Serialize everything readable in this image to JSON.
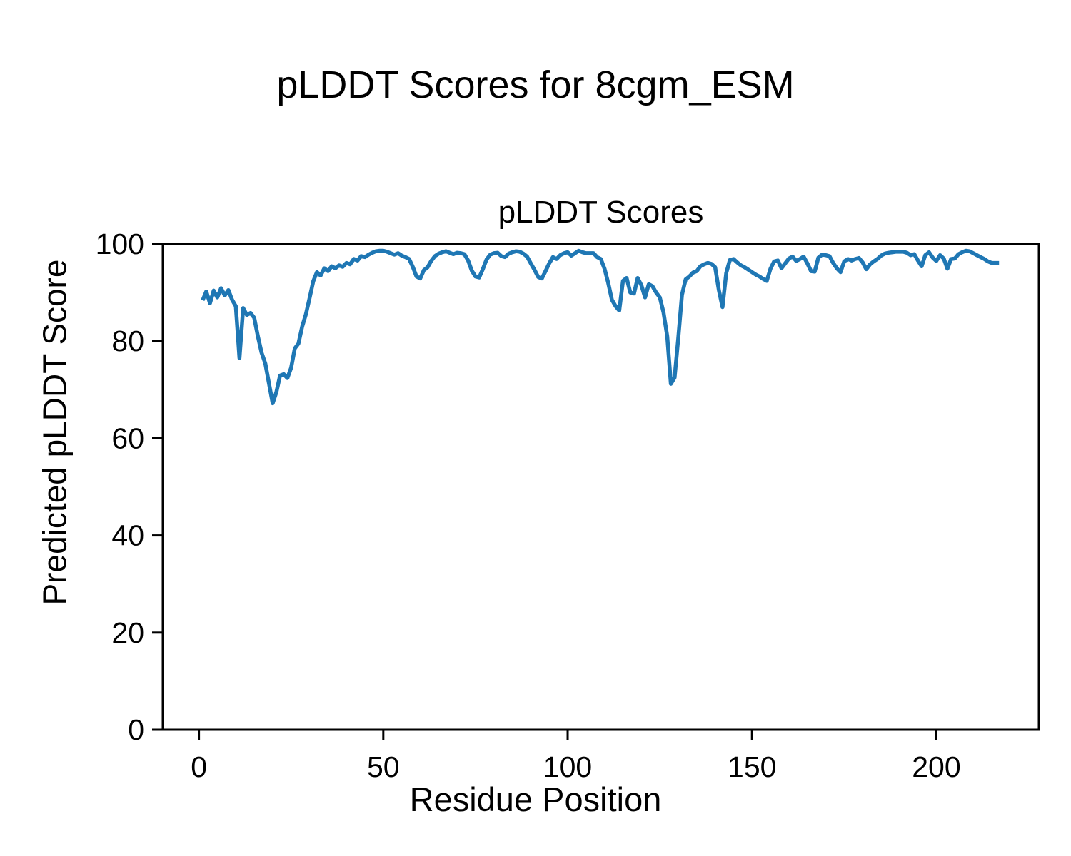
{
  "figure": {
    "suptitle": "pLDDT Scores for 8cgm_ESM"
  },
  "chart_data": {
    "type": "line",
    "title": "pLDDT Scores",
    "xlabel": "Residue Position",
    "ylabel": "Predicted pLDDT Score",
    "x_ticks": [
      0,
      50,
      100,
      150,
      200
    ],
    "y_ticks": [
      0,
      20,
      40,
      60,
      80,
      100
    ],
    "xlim": [
      -9.8,
      227.8
    ],
    "ylim": [
      0,
      100
    ],
    "legend": "none",
    "grid": false,
    "line_color": "#1f77b4",
    "axis_color": "#000000",
    "x_start": 1,
    "values": [
      88.4,
      90.2,
      87.8,
      90.4,
      89.0,
      90.9,
      89.4,
      90.5,
      88.5,
      87.2,
      76.5,
      86.8,
      85.4,
      85.8,
      84.8,
      81.0,
      77.6,
      75.4,
      71.3,
      67.2,
      69.5,
      72.9,
      73.2,
      72.4,
      74.5,
      78.5,
      79.5,
      83.0,
      85.5,
      88.8,
      92.3,
      94.2,
      93.5,
      95.0,
      94.4,
      95.4,
      95.0,
      95.6,
      95.3,
      96.1,
      95.8,
      96.9,
      96.6,
      97.5,
      97.3,
      97.8,
      98.2,
      98.5,
      98.6,
      98.6,
      98.4,
      98.1,
      97.8,
      98.1,
      97.6,
      97.3,
      96.9,
      95.3,
      93.3,
      92.9,
      94.6,
      95.2,
      96.5,
      97.5,
      98.0,
      98.3,
      98.5,
      98.2,
      97.9,
      98.2,
      98.1,
      97.9,
      96.6,
      94.5,
      93.3,
      93.1,
      94.8,
      96.8,
      97.8,
      98.1,
      98.2,
      97.5,
      97.3,
      98.0,
      98.3,
      98.5,
      98.4,
      98.0,
      97.4,
      96.0,
      94.7,
      93.2,
      92.9,
      94.4,
      96.0,
      97.3,
      96.9,
      97.7,
      98.1,
      98.3,
      97.6,
      98.1,
      98.6,
      98.3,
      98.1,
      98.1,
      98.1,
      97.3,
      96.9,
      94.9,
      92.0,
      88.5,
      87.2,
      86.3,
      92.4,
      93.0,
      90.0,
      89.8,
      93.0,
      91.5,
      89.0,
      91.7,
      91.3,
      90.0,
      89.0,
      85.9,
      81.0,
      71.2,
      72.5,
      80.5,
      89.5,
      92.7,
      93.3,
      94.1,
      94.4,
      95.4,
      95.8,
      96.1,
      95.9,
      95.2,
      90.5,
      87.0,
      94.0,
      96.7,
      96.9,
      96.2,
      95.6,
      95.2,
      94.7,
      94.2,
      93.7,
      93.3,
      92.8,
      92.4,
      94.9,
      96.4,
      96.6,
      95.0,
      96.0,
      97.0,
      97.4,
      96.5,
      96.9,
      97.4,
      96.0,
      94.4,
      94.3,
      97.2,
      97.8,
      97.7,
      97.5,
      96.1,
      95.0,
      94.2,
      96.4,
      96.9,
      96.6,
      96.9,
      97.1,
      96.2,
      94.8,
      95.8,
      96.4,
      96.9,
      97.6,
      98.0,
      98.2,
      98.3,
      98.4,
      98.4,
      98.4,
      98.2,
      97.7,
      97.9,
      96.6,
      95.4,
      97.7,
      98.3,
      97.2,
      96.5,
      97.7,
      97.0,
      94.9,
      96.9,
      97.0,
      97.9,
      98.3,
      98.6,
      98.5,
      98.1,
      97.7,
      97.3,
      96.9,
      96.4,
      96.1,
      96.1,
      96.1
    ]
  }
}
